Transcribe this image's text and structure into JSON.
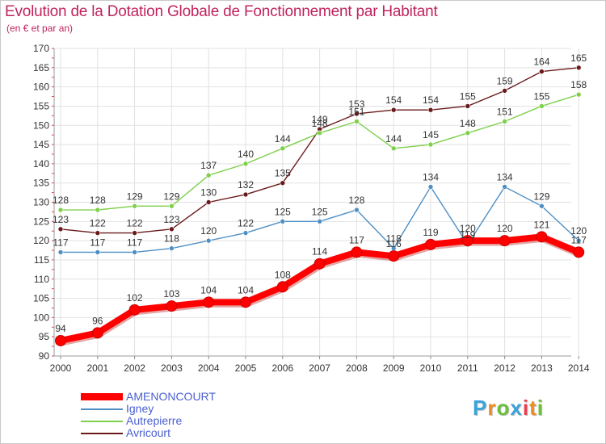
{
  "title": "Evolution de la Dotation Globale de Fonctionnement par Habitant",
  "subtitle": "(en € et par an)",
  "logo": [
    "P",
    "r",
    "o",
    "x",
    "i",
    "t",
    "i"
  ],
  "logo_colors": [
    "#3ba3d9",
    "#f08c1e",
    "#6cbf3a",
    "#3ba3d9",
    "#e8414f",
    "#f08c1e",
    "#6cbf3a"
  ],
  "chart_data": {
    "type": "line",
    "title": "Evolution de la Dotation Globale de Fonctionnement par Habitant",
    "subtitle": "(en € et par an)",
    "xlabel": "",
    "ylabel": "",
    "x": [
      "2000",
      "2001",
      "2002",
      "2003",
      "2004",
      "2005",
      "2006",
      "2007",
      "2008",
      "2009",
      "2010",
      "2011",
      "2012",
      "2013",
      "2014"
    ],
    "ylim": [
      90,
      170
    ],
    "yticks": [
      90,
      95,
      100,
      105,
      110,
      115,
      120,
      125,
      130,
      135,
      140,
      145,
      150,
      155,
      160,
      165,
      170
    ],
    "grid": true,
    "legend_position": "bottom-left",
    "series": [
      {
        "name": "AMENONCOURT",
        "color": "#ff0000",
        "values": [
          94,
          96,
          102,
          103,
          104,
          104,
          108,
          114,
          117,
          116,
          119,
          120,
          120,
          121,
          117
        ],
        "labels": [
          "94",
          "96",
          "102",
          "103",
          "104",
          "104",
          "108",
          "114",
          "117",
          "",
          "119",
          "120",
          "120",
          "121",
          ""
        ]
      },
      {
        "name": "Igney",
        "color": "#4f8fc4",
        "values": [
          117,
          117,
          117,
          118,
          120,
          122,
          125,
          125,
          128,
          118,
          134,
          119,
          134,
          129,
          120
        ],
        "labels": [
          "117",
          "117",
          "117",
          "118",
          "120",
          "122",
          "125",
          "125",
          "128",
          "118",
          "134",
          "119",
          "134",
          "129",
          "120"
        ]
      },
      {
        "name": "Autrepierre",
        "color": "#7ed04a",
        "values": [
          128,
          128,
          129,
          129,
          137,
          140,
          144,
          148,
          151,
          144,
          145,
          148,
          151,
          155,
          158
        ],
        "labels": [
          "128",
          "128",
          "129",
          "129",
          "137",
          "140",
          "144",
          "148",
          "151",
          "144",
          "145",
          "148",
          "151",
          "155",
          "158"
        ]
      },
      {
        "name": "Avricourt",
        "color": "#6a1a1a",
        "values": [
          123,
          122,
          122,
          123,
          130,
          132,
          135,
          149,
          153,
          154,
          154,
          155,
          159,
          164,
          165
        ],
        "labels": [
          "123",
          "122",
          "122",
          "123",
          "130",
          "132",
          "135",
          "149",
          "153",
          "154",
          "154",
          "155",
          "159",
          "164",
          "165"
        ]
      }
    ],
    "extra_labels": [
      {
        "x": "2009",
        "series": "AMENONCOURT",
        "text": "116"
      },
      {
        "x": "2014",
        "series": "AMENONCOURT",
        "text": "117"
      }
    ]
  }
}
